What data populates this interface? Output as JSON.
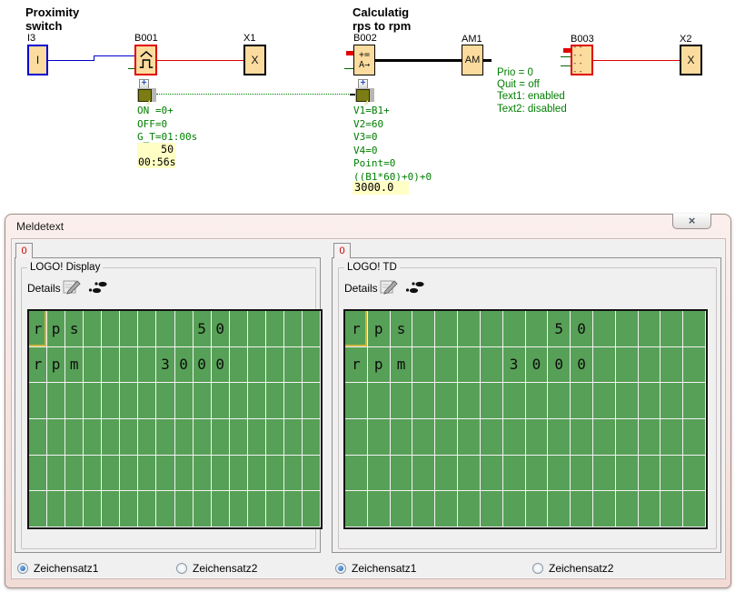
{
  "diagram": {
    "comment_proximity_line1": "Proximity",
    "comment_proximity_line2": "switch",
    "comment_calc_line1": "Calculatig",
    "comment_calc_line2": "rps to rpm",
    "i3": {
      "label": "I3",
      "body": "I"
    },
    "b001": {
      "label": "B001",
      "params": [
        "ON =0+",
        "OFF=0",
        "G_T=01:00s"
      ],
      "value1": "50",
      "value2": "00:56s"
    },
    "x1": {
      "label": "X1",
      "body": "X"
    },
    "b002": {
      "label": "B002",
      "body1": "+=",
      "body2": "A→",
      "params": [
        "V1=B1+",
        "V2=60",
        "V3=0",
        "V4=0",
        "Point=0",
        "((B1*60)+0)+0"
      ],
      "value": "3000.0"
    },
    "am1": {
      "label": "AM1",
      "body": "AM"
    },
    "b003": {
      "label": "B003",
      "body1": "-- --",
      "body2": "-- --",
      "params": [
        "Prio = 0",
        "Quit = off",
        "Text1: enabled",
        "Text2: disabled"
      ]
    },
    "x2": {
      "label": "X2",
      "body": "X"
    },
    "expand_glyph": "+"
  },
  "dialog": {
    "title": "Meldetext",
    "close_glyph": "×",
    "tab_label": "0",
    "left_panel": {
      "group_title": "LOGO! Display",
      "details_label": "Details",
      "charset1": "Zeichensatz1",
      "charset2": "Zeichensatz2",
      "charset_selected": "Zeichensatz1"
    },
    "right_panel": {
      "group_title": "LOGO! TD",
      "details_label": "Details",
      "charset1": "Zeichensatz1",
      "charset2": "Zeichensatz2",
      "charset_selected": "Zeichensatz1"
    },
    "display": {
      "rows": 6,
      "cols": 16,
      "lines": [
        "rps      50     ",
        "rpm    3000     ",
        "",
        "",
        "",
        ""
      ],
      "cursor": {
        "row": 0,
        "col": 0
      }
    }
  },
  "colors": {
    "block_fill": "#fcdc9e",
    "wire_blue": "#0000cd",
    "wire_red": "#e00000",
    "param_green": "#007f00",
    "value_yellow": "#ffffc5",
    "display_green": "#57a057",
    "cursor_yellow": "#cdb53e",
    "tab_red": "#cc0000"
  }
}
